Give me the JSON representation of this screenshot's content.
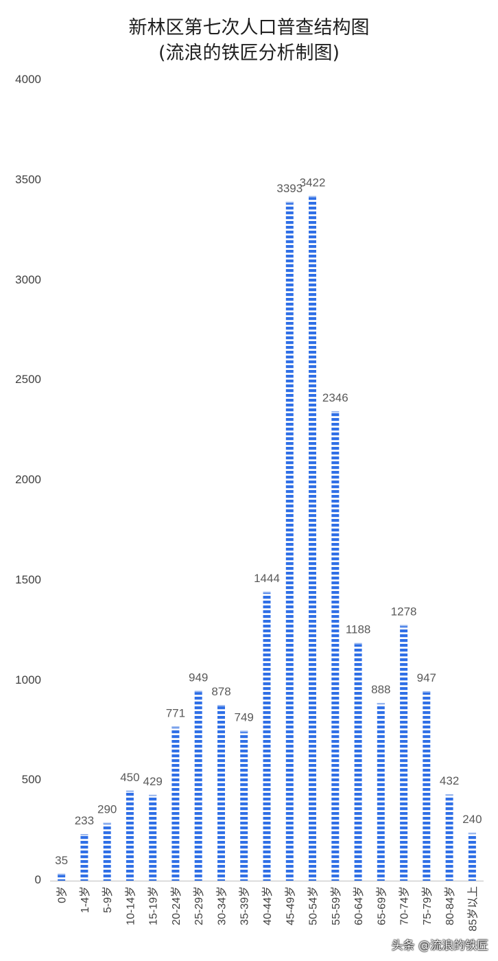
{
  "colors": {
    "bar_stripe": "#2f6fe6",
    "bar_gap": "#ffffff",
    "axis": "#bfbfbf",
    "label": "#595959",
    "title": "#1f1f1f"
  },
  "watermark": "头条 @流浪的铁匠",
  "chart_data": {
    "type": "bar",
    "title": "新林区第七次人口普查结构图",
    "subtitle": "(流浪的铁匠分析制图)",
    "xlabel": "",
    "ylabel": "",
    "ylim": [
      0,
      4000
    ],
    "yticks": [
      "0",
      "500",
      "1000",
      "1500",
      "2000",
      "2500",
      "3000",
      "3500",
      "4000"
    ],
    "grid": false,
    "categories": [
      "0岁",
      "1-4岁",
      "5-9岁",
      "10-14岁",
      "15-19岁",
      "20-24岁",
      "25-29岁",
      "30-34岁",
      "35-39岁",
      "40-44岁",
      "45-49岁",
      "50-54岁",
      "55-59岁",
      "60-64岁",
      "65-69岁",
      "70-74岁",
      "75-79岁",
      "80-84岁",
      "85岁以上"
    ],
    "values": [
      35,
      233,
      290,
      450,
      429,
      771,
      949,
      878,
      749,
      1444,
      3393,
      3422,
      2346,
      1188,
      888,
      1278,
      947,
      432,
      240
    ],
    "data_labels": [
      "35",
      "233",
      "290",
      "450",
      "429",
      "771",
      "949",
      "878",
      "749",
      "1444",
      "3393",
      "3422",
      "2346",
      "1188",
      "888",
      "1278",
      "947",
      "432",
      "240"
    ]
  }
}
